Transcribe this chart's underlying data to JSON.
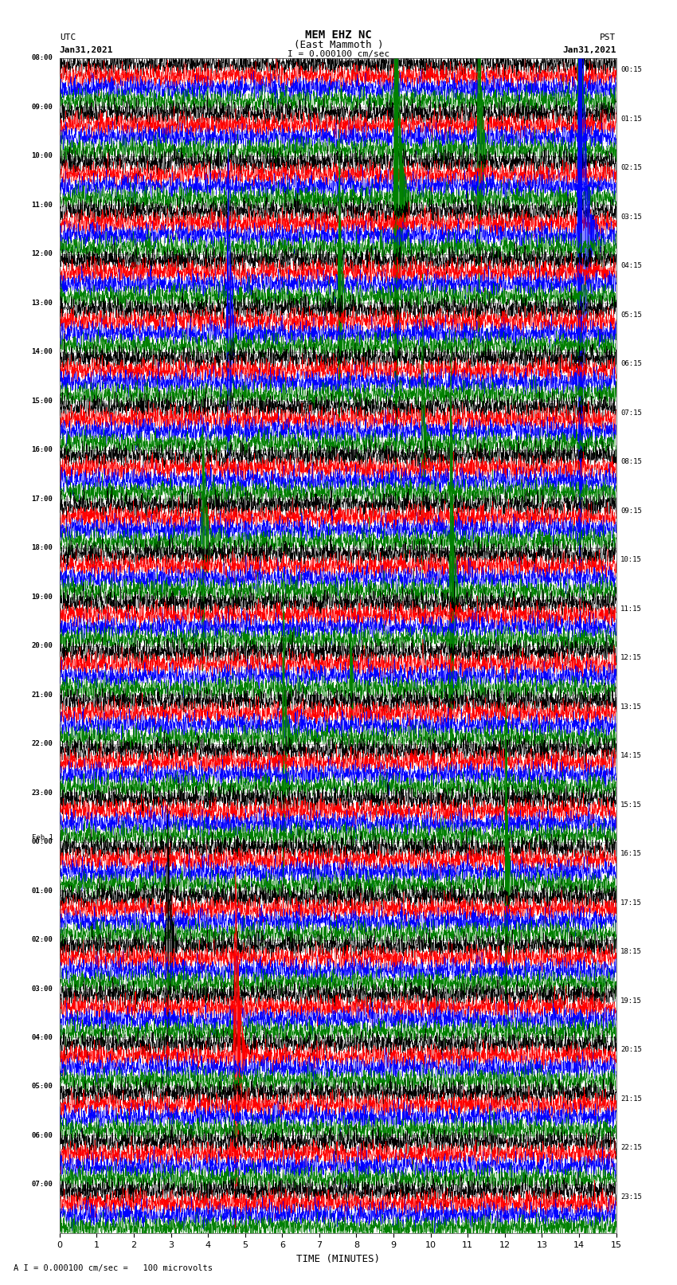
{
  "title_line1": "MEM EHZ NC",
  "title_line2": "(East Mammoth )",
  "title_scale": "I = 0.000100 cm/sec",
  "left_label": "UTC",
  "left_date": "Jan31,2021",
  "right_label": "PST",
  "right_date": "Jan31,2021",
  "xlabel": "TIME (MINUTES)",
  "footer": "A I = 0.000100 cm/sec =   100 microvolts",
  "xmin": 0,
  "xmax": 15,
  "xticks": [
    0,
    1,
    2,
    3,
    4,
    5,
    6,
    7,
    8,
    9,
    10,
    11,
    12,
    13,
    14,
    15
  ],
  "left_times": [
    "08:00",
    "09:00",
    "10:00",
    "11:00",
    "12:00",
    "13:00",
    "14:00",
    "15:00",
    "16:00",
    "17:00",
    "18:00",
    "19:00",
    "20:00",
    "21:00",
    "22:00",
    "23:00",
    "Feb 1\n00:00",
    "01:00",
    "02:00",
    "03:00",
    "04:00",
    "05:00",
    "06:00",
    "07:00"
  ],
  "right_times": [
    "00:15",
    "01:15",
    "02:15",
    "03:15",
    "04:15",
    "05:15",
    "06:15",
    "07:15",
    "08:15",
    "09:15",
    "10:15",
    "11:15",
    "12:15",
    "13:15",
    "14:15",
    "15:15",
    "16:15",
    "17:15",
    "18:15",
    "19:15",
    "20:15",
    "21:15",
    "22:15",
    "23:15"
  ],
  "colors": [
    "black",
    "red",
    "blue",
    "green"
  ],
  "n_hours": 24,
  "traces_per_hour": 4,
  "background_color": "white",
  "grid_color": "#888888",
  "fig_width": 8.5,
  "fig_height": 16.13,
  "dpi": 100
}
